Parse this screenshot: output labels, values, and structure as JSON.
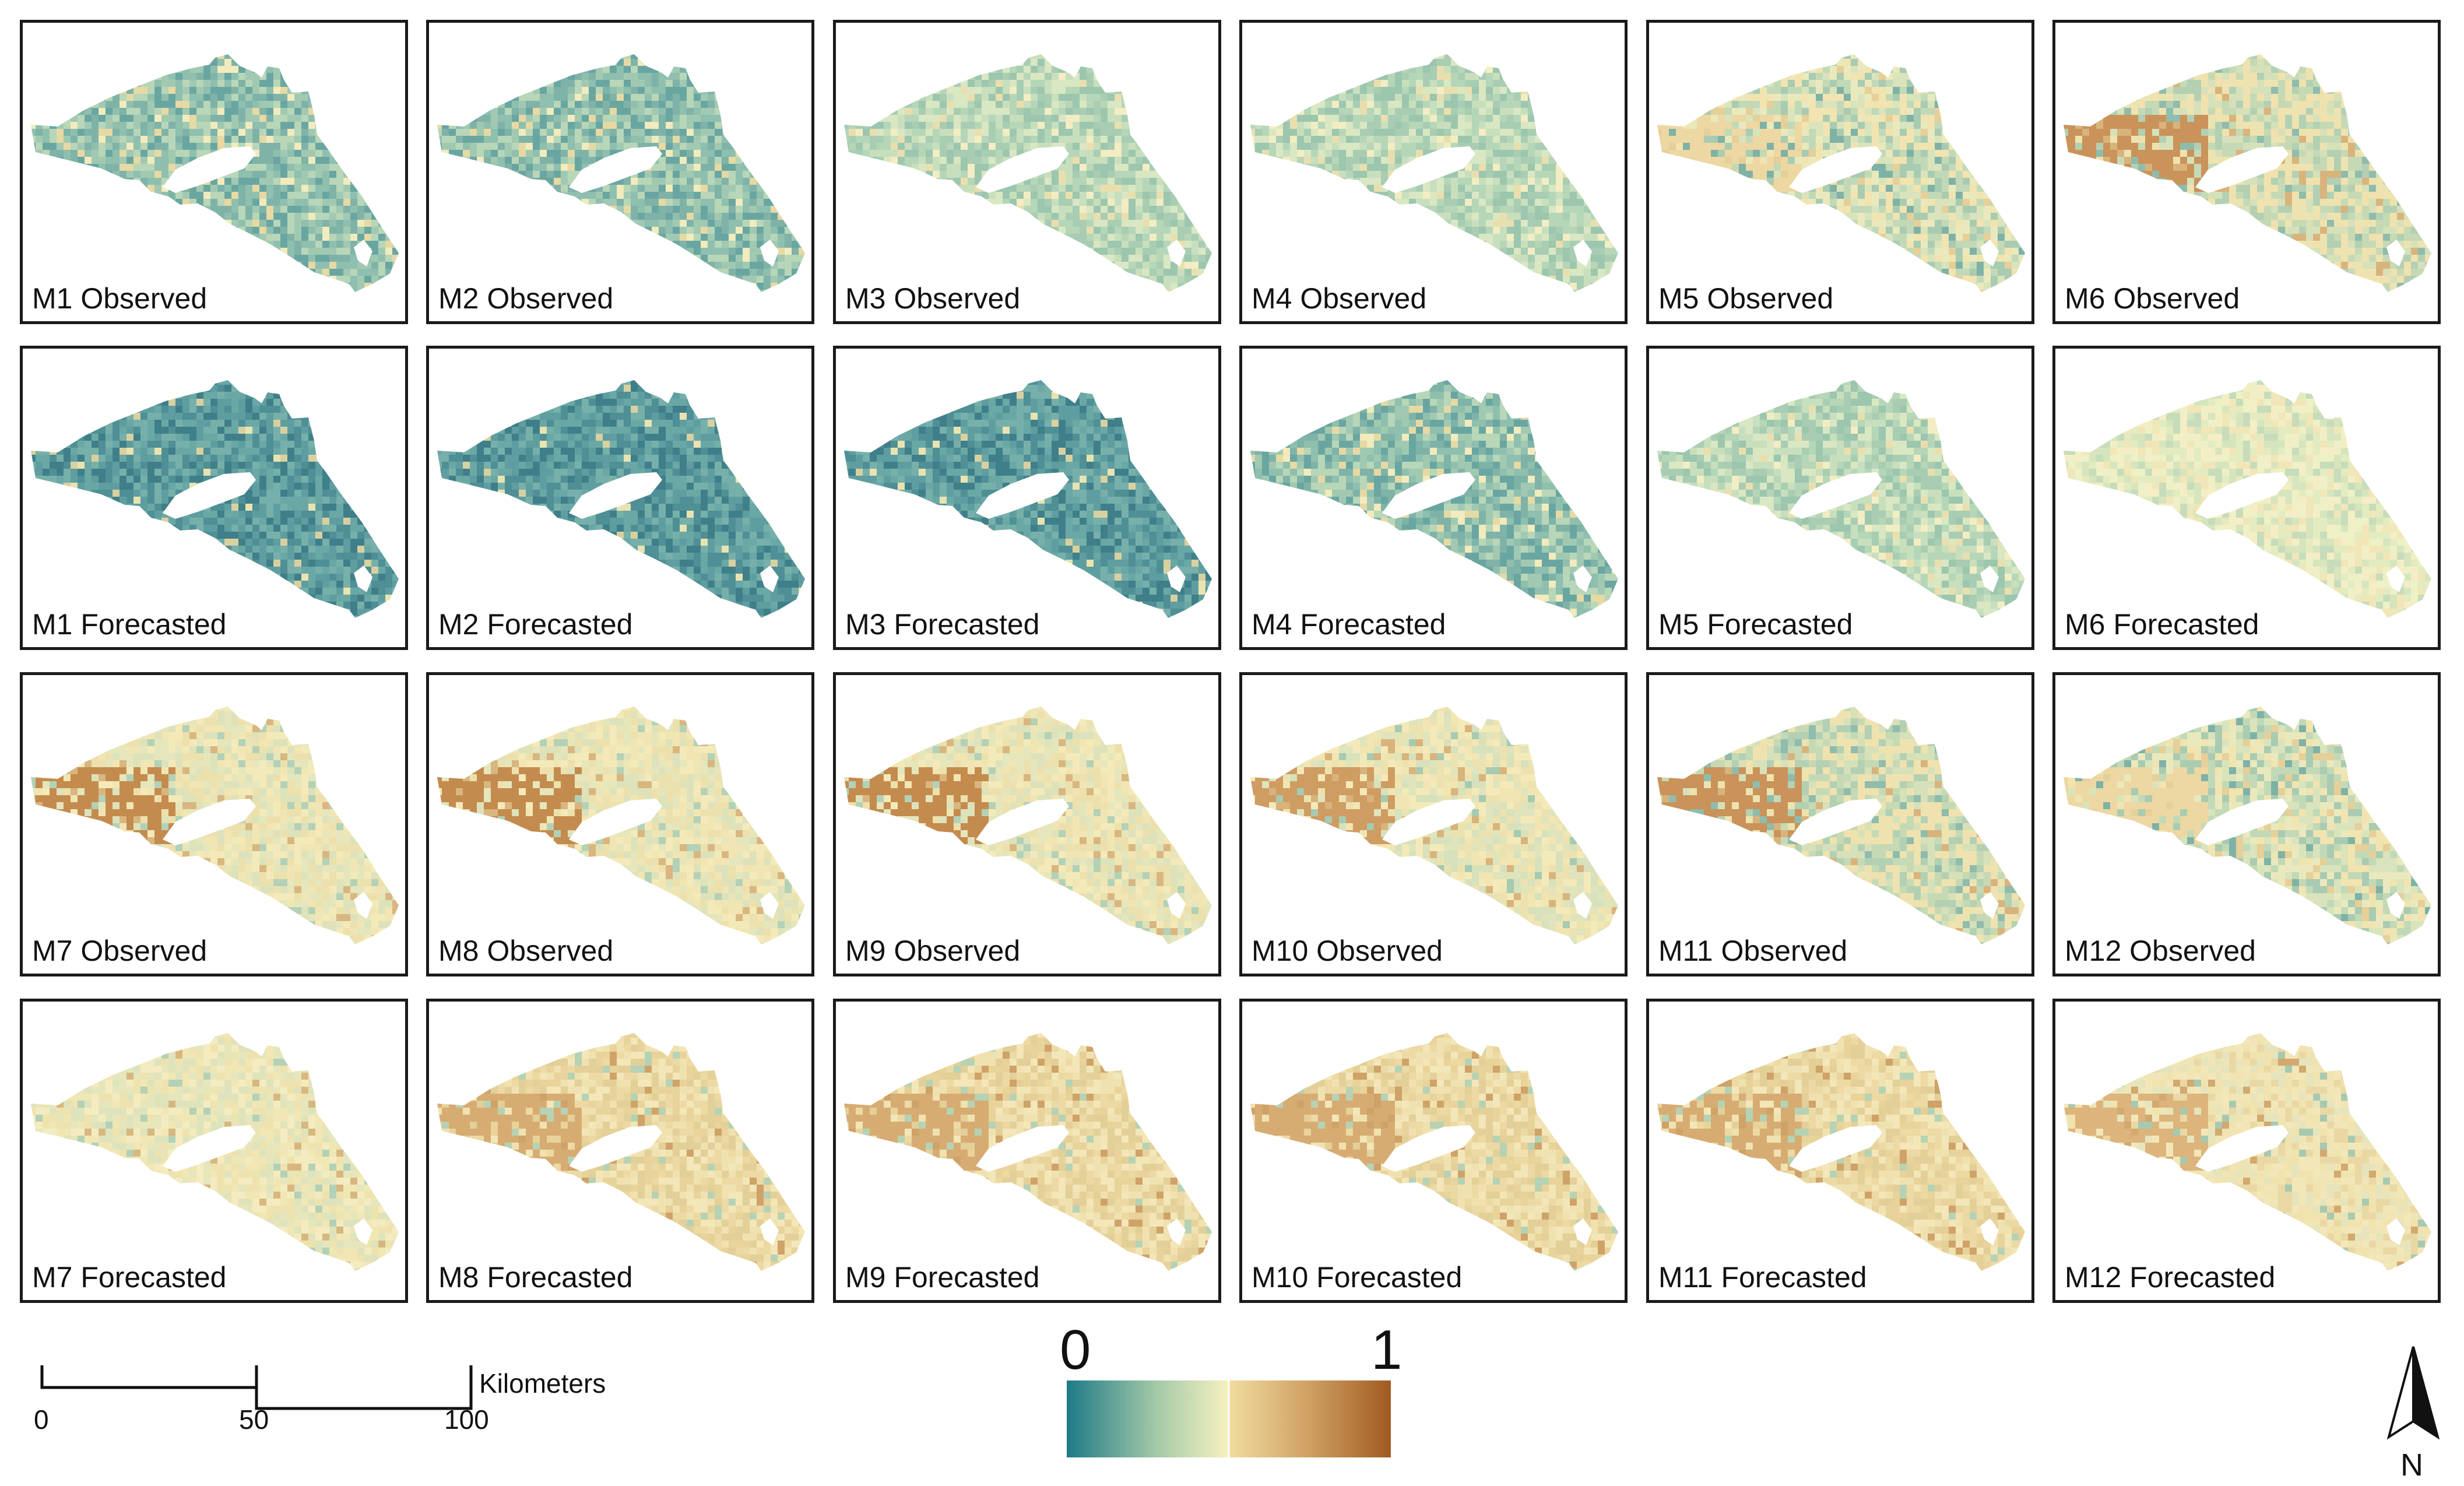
{
  "panels": [
    {
      "label": "M1 Observed",
      "palette": "teal-mid"
    },
    {
      "label": "M2 Observed",
      "palette": "teal-mid"
    },
    {
      "label": "M3 Observed",
      "palette": "teal-light"
    },
    {
      "label": "M4 Observed",
      "palette": "teal-light"
    },
    {
      "label": "M5 Observed",
      "palette": "mixed-light"
    },
    {
      "label": "M6 Observed",
      "palette": "mixed-warm"
    },
    {
      "label": "M1 Forecasted",
      "palette": "teal-dark"
    },
    {
      "label": "M2 Forecasted",
      "palette": "teal-dark"
    },
    {
      "label": "M3 Forecasted",
      "palette": "teal-dark"
    },
    {
      "label": "M4 Forecasted",
      "palette": "teal-mid"
    },
    {
      "label": "M5 Forecasted",
      "palette": "teal-light"
    },
    {
      "label": "M6 Forecasted",
      "palette": "pale"
    },
    {
      "label": "M7 Observed",
      "palette": "brown-west"
    },
    {
      "label": "M8 Observed",
      "palette": "brown-west"
    },
    {
      "label": "M9 Observed",
      "palette": "brown-west"
    },
    {
      "label": "M10 Observed",
      "palette": "brown-west-light"
    },
    {
      "label": "M11 Observed",
      "palette": "mixed-warm"
    },
    {
      "label": "M12 Observed",
      "palette": "mixed-light"
    },
    {
      "label": "M7 Forecasted",
      "palette": "pale-warm"
    },
    {
      "label": "M8 Forecasted",
      "palette": "tan"
    },
    {
      "label": "M9 Forecasted",
      "palette": "tan"
    },
    {
      "label": "M10 Forecasted",
      "palette": "tan"
    },
    {
      "label": "M11 Forecasted",
      "palette": "tan"
    },
    {
      "label": "M12 Forecasted",
      "palette": "tan-light"
    }
  ],
  "legend": {
    "min_label": "0",
    "max_label": "1",
    "colors": [
      "#1f7a87",
      "#a3c9a8",
      "#f6f2c0",
      "#f1dca0",
      "#cfa062",
      "#a05a22"
    ]
  },
  "scale_bar": {
    "unit": "Kilometers",
    "ticks": [
      "0",
      "50",
      "100"
    ]
  },
  "north_arrow": {
    "label": "N",
    "icon": "north-arrow-icon"
  }
}
